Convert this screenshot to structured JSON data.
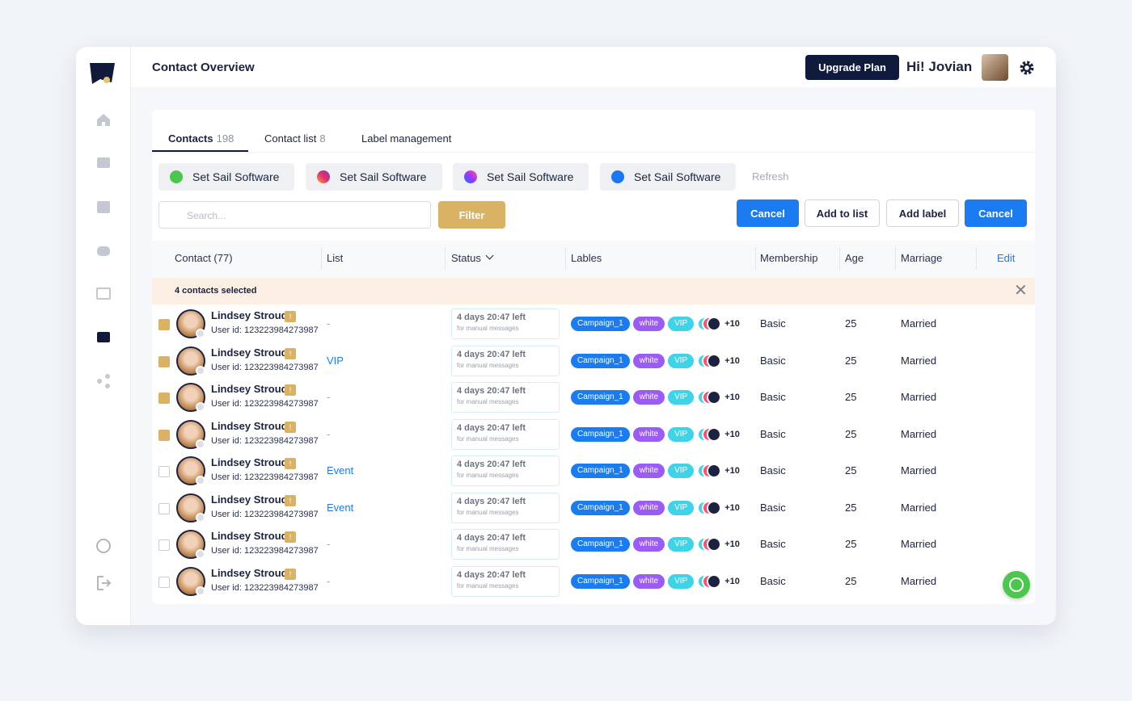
{
  "header": {
    "title": "Contact Overview",
    "upgrade": "Upgrade Plan",
    "greeting": "Hi! Jovian"
  },
  "tabs": [
    {
      "label": "Contacts",
      "count": 198
    },
    {
      "label": "Contact list",
      "count": 8
    },
    {
      "label": "Label management"
    }
  ],
  "channels": [
    "Set Sail Software",
    "Set Sail Software",
    "Set Sail Software",
    "Set Sail Software"
  ],
  "refresh": "Refresh",
  "search_placeholder": "Search...",
  "filter": "Filter",
  "actions": [
    "Cancel",
    "Add to list",
    "Add label",
    "Cancel"
  ],
  "table": {
    "columns": [
      "Contact (77)",
      "List",
      "Status",
      "Lables",
      "Membership",
      "Age",
      "Marriage"
    ],
    "edit": "Edit",
    "selection_note": "4 contacts selected",
    "rows": [
      {
        "checked": true,
        "name": "Lindsey Stroud",
        "badge": "!",
        "user_id": "User id: 123223984273987",
        "list": "-",
        "status": "4 days 20:47 left",
        "status_note": "for manual messages",
        "labels": [
          "Campaign_1",
          "white",
          "VIP"
        ],
        "more": "+10",
        "membership": "Basic",
        "age": 25,
        "marriage": "Married"
      },
      {
        "checked": true,
        "name": "Lindsey Stroud",
        "badge": "!",
        "user_id": "User id: 123223984273987",
        "list": "VIP",
        "status": "4 days 20:47 left",
        "status_note": "for manual messages",
        "labels": [
          "Campaign_1",
          "white",
          "VIP"
        ],
        "more": "+10",
        "membership": "Basic",
        "age": 25,
        "marriage": "Married"
      },
      {
        "checked": true,
        "name": "Lindsey Stroud",
        "badge": "!",
        "user_id": "User id: 123223984273987",
        "list": "-",
        "status": "4 days 20:47 left",
        "status_note": "for manual messages",
        "labels": [
          "Campaign_1",
          "white",
          "VIP"
        ],
        "more": "+10",
        "membership": "Basic",
        "age": 25,
        "marriage": "Married"
      },
      {
        "checked": true,
        "name": "Lindsey Stroud",
        "badge": "!",
        "user_id": "User id: 123223984273987",
        "list": "-",
        "status": "4 days 20:47 left",
        "status_note": "for manual messages",
        "labels": [
          "Campaign_1",
          "white",
          "VIP"
        ],
        "more": "+10",
        "membership": "Basic",
        "age": 25,
        "marriage": "Married"
      },
      {
        "checked": false,
        "name": "Lindsey Stroud",
        "badge": "!",
        "user_id": "User id: 123223984273987",
        "list": "Event",
        "status": "4 days 20:47 left",
        "status_note": "for manual messages",
        "labels": [
          "Campaign_1",
          "white",
          "VIP"
        ],
        "more": "+10",
        "membership": "Basic",
        "age": 25,
        "marriage": "Married"
      },
      {
        "checked": false,
        "name": "Lindsey Stroud",
        "badge": "!",
        "user_id": "User id: 123223984273987",
        "list": "Event",
        "status": "4 days 20:47 left",
        "status_note": "for manual messages",
        "labels": [
          "Campaign_1",
          "white",
          "VIP"
        ],
        "more": "+10",
        "membership": "Basic",
        "age": 25,
        "marriage": "Married"
      },
      {
        "checked": false,
        "name": "Lindsey Stroud",
        "badge": "!",
        "user_id": "User id: 123223984273987",
        "list": "-",
        "status": "4 days 20:47 left",
        "status_note": "for manual messages",
        "labels": [
          "Campaign_1",
          "white",
          "VIP"
        ],
        "more": "+10",
        "membership": "Basic",
        "age": 25,
        "marriage": "Married"
      },
      {
        "checked": false,
        "name": "Lindsey Stroud",
        "badge": "!",
        "user_id": "User id: 123223984273987",
        "list": "-",
        "status": "4 days 20:47 left",
        "status_note": "for manual messages",
        "labels": [
          "Campaign_1",
          "white",
          "VIP"
        ],
        "more": "+10",
        "membership": "Basic",
        "age": 25,
        "marriage": "Married"
      }
    ]
  }
}
